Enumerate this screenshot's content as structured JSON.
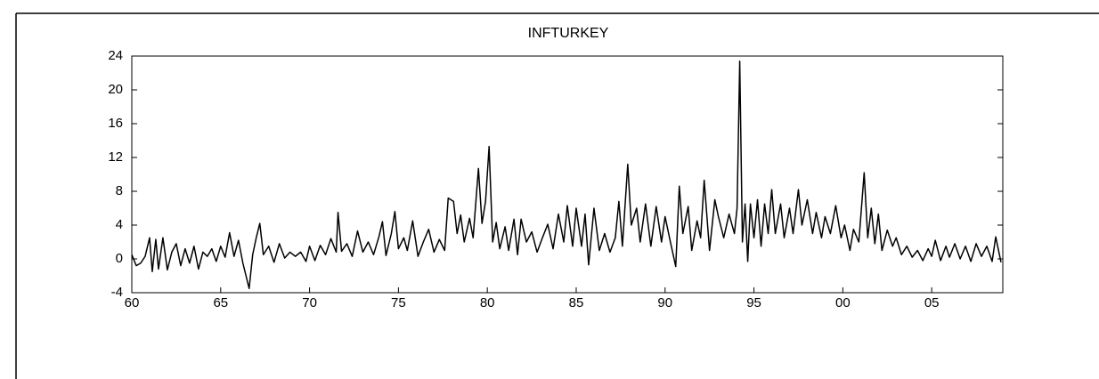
{
  "chart_data": {
    "type": "line",
    "title": "INFTURKEY",
    "x": [
      1960.0,
      1960.25,
      1960.5,
      1960.75,
      1961.0,
      1961.15,
      1961.35,
      1961.5,
      1961.75,
      1962.0,
      1962.25,
      1962.5,
      1962.75,
      1963.0,
      1963.25,
      1963.5,
      1963.75,
      1964.0,
      1964.25,
      1964.5,
      1964.75,
      1965.0,
      1965.25,
      1965.5,
      1965.75,
      1966.0,
      1966.25,
      1966.6,
      1966.8,
      1967.0,
      1967.2,
      1967.4,
      1967.7,
      1968.0,
      1968.3,
      1968.6,
      1968.9,
      1969.2,
      1969.5,
      1969.8,
      1970.0,
      1970.3,
      1970.6,
      1970.9,
      1971.2,
      1971.5,
      1971.6,
      1971.8,
      1972.1,
      1972.4,
      1972.7,
      1973.0,
      1973.3,
      1973.6,
      1973.9,
      1974.1,
      1974.3,
      1974.6,
      1974.8,
      1975.0,
      1975.3,
      1975.5,
      1975.8,
      1976.1,
      1976.4,
      1976.7,
      1977.0,
      1977.3,
      1977.6,
      1977.8,
      1978.1,
      1978.3,
      1978.5,
      1978.7,
      1979.0,
      1979.2,
      1979.5,
      1979.7,
      1979.9,
      1980.1,
      1980.3,
      1980.5,
      1980.7,
      1981.0,
      1981.2,
      1981.5,
      1981.7,
      1981.9,
      1982.2,
      1982.5,
      1982.8,
      1983.1,
      1983.4,
      1983.7,
      1984.0,
      1984.3,
      1984.5,
      1984.8,
      1985.0,
      1985.3,
      1985.5,
      1985.7,
      1986.0,
      1986.3,
      1986.6,
      1986.9,
      1987.2,
      1987.4,
      1987.6,
      1987.9,
      1988.1,
      1988.4,
      1988.6,
      1988.9,
      1989.2,
      1989.5,
      1989.8,
      1990.0,
      1990.3,
      1990.6,
      1990.8,
      1991.0,
      1991.3,
      1991.5,
      1991.8,
      1992.0,
      1992.2,
      1992.5,
      1992.8,
      1993.0,
      1993.3,
      1993.6,
      1993.9,
      1994.05,
      1994.2,
      1994.35,
      1994.5,
      1994.65,
      1994.8,
      1995.0,
      1995.2,
      1995.4,
      1995.6,
      1995.8,
      1996.0,
      1996.2,
      1996.5,
      1996.7,
      1997.0,
      1997.2,
      1997.5,
      1997.7,
      1998.0,
      1998.3,
      1998.5,
      1998.8,
      1999.0,
      1999.3,
      1999.6,
      1999.9,
      2000.1,
      2000.4,
      2000.6,
      2000.9,
      2001.2,
      2001.4,
      2001.6,
      2001.8,
      2002.0,
      2002.2,
      2002.5,
      2002.8,
      2003.0,
      2003.3,
      2003.6,
      2003.9,
      2004.2,
      2004.5,
      2004.8,
      2005.0,
      2005.2,
      2005.5,
      2005.8,
      2006.0,
      2006.3,
      2006.6,
      2006.9,
      2007.2,
      2007.5,
      2007.8,
      2008.1,
      2008.4,
      2008.6,
      2008.9
    ],
    "values": [
      0.5,
      -0.8,
      -0.5,
      0.3,
      2.5,
      -1.5,
      2.3,
      -1.2,
      2.5,
      -1.3,
      0.8,
      1.8,
      -0.8,
      1.2,
      -0.5,
      1.5,
      -1.2,
      0.8,
      0.3,
      1.2,
      -0.3,
      1.5,
      0.2,
      3.1,
      0.3,
      2.2,
      -0.5,
      -3.5,
      0.5,
      2.5,
      4.2,
      0.5,
      1.5,
      -0.4,
      1.8,
      0.1,
      0.8,
      0.3,
      0.8,
      -0.3,
      1.5,
      -0.2,
      1.6,
      0.5,
      2.4,
      0.8,
      5.5,
      0.9,
      1.8,
      0.3,
      3.3,
      0.8,
      2.0,
      0.5,
      2.6,
      4.4,
      0.4,
      3.0,
      5.6,
      1.2,
      2.5,
      1.0,
      4.5,
      0.3,
      2.0,
      3.5,
      0.8,
      2.3,
      1.0,
      7.2,
      6.8,
      3.0,
      5.2,
      2.0,
      4.8,
      2.5,
      10.7,
      4.2,
      6.8,
      13.3,
      2.0,
      4.3,
      1.2,
      3.8,
      1.0,
      4.7,
      0.5,
      4.7,
      2.0,
      3.2,
      0.8,
      2.5,
      4.1,
      1.2,
      5.3,
      2.0,
      6.3,
      1.5,
      6.0,
      1.5,
      5.3,
      -0.7,
      6.0,
      1.0,
      3.0,
      0.8,
      2.5,
      6.8,
      1.5,
      11.2,
      4.0,
      6.0,
      2.0,
      6.5,
      1.5,
      6.2,
      2.0,
      5.0,
      2.0,
      -0.9,
      8.6,
      3.0,
      6.2,
      1.0,
      4.5,
      2.5,
      9.3,
      1.0,
      7.0,
      5.0,
      2.5,
      5.3,
      3.0,
      6.0,
      23.4,
      2.0,
      6.5,
      -0.3,
      6.5,
      2.5,
      7.0,
      1.5,
      6.5,
      3.0,
      8.2,
      3.0,
      6.5,
      2.5,
      6.0,
      3.0,
      8.2,
      4.0,
      7.0,
      3.0,
      5.5,
      2.5,
      5.0,
      3.0,
      6.3,
      2.5,
      4.0,
      1.0,
      3.5,
      2.0,
      10.2,
      2.5,
      6.0,
      1.8,
      5.3,
      1.0,
      3.4,
      1.5,
      2.5,
      0.5,
      1.5,
      0.2,
      1.0,
      -0.2,
      1.2,
      0.3,
      2.2,
      -0.2,
      1.5,
      0.2,
      1.8,
      0.0,
      1.5,
      -0.3,
      1.8,
      0.3,
      1.5,
      -0.3,
      2.6,
      -0.4
    ],
    "color": "#000000",
    "xlim": [
      1960,
      2009
    ],
    "xticks": [
      {
        "value": 1960,
        "label": "60"
      },
      {
        "value": 1965,
        "label": "65"
      },
      {
        "value": 1970,
        "label": "70"
      },
      {
        "value": 1975,
        "label": "75"
      },
      {
        "value": 1980,
        "label": "80"
      },
      {
        "value": 1985,
        "label": "85"
      },
      {
        "value": 1990,
        "label": "90"
      },
      {
        "value": 1995,
        "label": "95"
      },
      {
        "value": 2000,
        "label": "00"
      },
      {
        "value": 2005,
        "label": "05"
      }
    ],
    "ylim": [
      -4,
      24
    ],
    "yticks": [
      -4,
      0,
      4,
      8,
      12,
      16,
      20,
      24
    ]
  }
}
